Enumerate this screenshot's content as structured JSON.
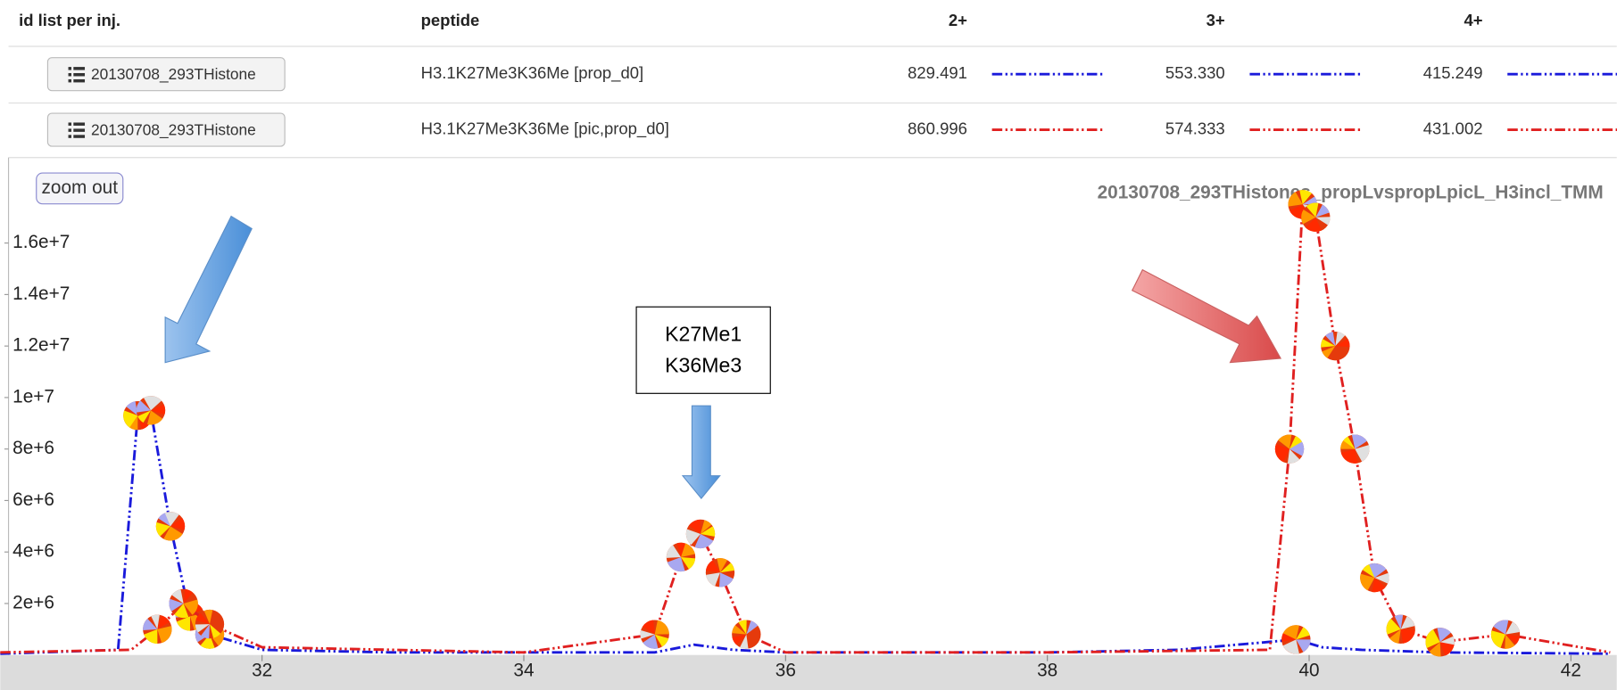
{
  "table": {
    "header": [
      "id list per inj.",
      "peptide",
      "2+",
      "3+",
      "4+"
    ],
    "rows": [
      {
        "button": "20130708_293THistone",
        "peptide": "H3.1K27Me3K36Me [prop_d0]",
        "mz": [
          "829.491",
          "553.330",
          "415.249"
        ]
      },
      {
        "button": "20130708_293THistone",
        "peptide": "H3.1K27Me3K36Me [pic,prop_d0]",
        "mz": [
          "860.996",
          "574.333",
          "431.002"
        ]
      }
    ]
  },
  "zoom_button": "zoom out",
  "chart_data": {
    "type": "line",
    "title": "20130708_293THistones_propLvspropLpicL_H3incl_TMM",
    "annotation": [
      "K27Me1",
      "K36Me3"
    ],
    "xlim": [
      30,
      42.35
    ],
    "xticks": [
      32,
      34,
      36,
      38,
      40,
      42
    ],
    "ylim": [
      0,
      19440000
    ],
    "yticks": [
      {
        "value": 2000000,
        "label": "2e+6"
      },
      {
        "value": 4000000,
        "label": "4e+6"
      },
      {
        "value": 6000000,
        "label": "6e+6"
      },
      {
        "value": 8000000,
        "label": "8e+6"
      },
      {
        "value": 10000000,
        "label": "1e+7"
      },
      {
        "value": 12000000,
        "label": "1.2e+7"
      },
      {
        "value": 14000000,
        "label": "1.4e+7"
      },
      {
        "value": 16000000,
        "label": "1.6e+7"
      }
    ],
    "series": [
      {
        "name": "H3.1K27Me3K36Me [prop_d0]",
        "color": "#1a1adb",
        "x": [
          30.0,
          30.9,
          31.05,
          31.15,
          31.3,
          31.45,
          31.6,
          32,
          33,
          34,
          35,
          35.3,
          35.6,
          36,
          38,
          39,
          39.9,
          40.1,
          40.4,
          41,
          42.3
        ],
        "values": [
          50000,
          200000,
          9300000,
          9500000,
          5000000,
          1500000,
          800000,
          200000,
          100000,
          100000,
          100000,
          400000,
          200000,
          100000,
          100000,
          200000,
          600000,
          300000,
          200000,
          100000,
          50000
        ]
      },
      {
        "name": "H3.1K27Me3K36Me [pic,prop_d0]",
        "color": "#e02020",
        "x": [
          30,
          31,
          31.2,
          31.4,
          31.6,
          32,
          34,
          35,
          35.2,
          35.35,
          35.5,
          35.7,
          36,
          38,
          39.7,
          39.85,
          39.95,
          40.05,
          40.2,
          40.35,
          40.5,
          40.7,
          41,
          41.5,
          42.3
        ],
        "values": [
          100000,
          200000,
          1000000,
          2000000,
          1200000,
          300000,
          100000,
          800000,
          3800000,
          4700000,
          3200000,
          800000,
          100000,
          100000,
          200000,
          8000000,
          17500000,
          17000000,
          12000000,
          8000000,
          3000000,
          1000000,
          500000,
          800000,
          100000
        ]
      }
    ]
  }
}
